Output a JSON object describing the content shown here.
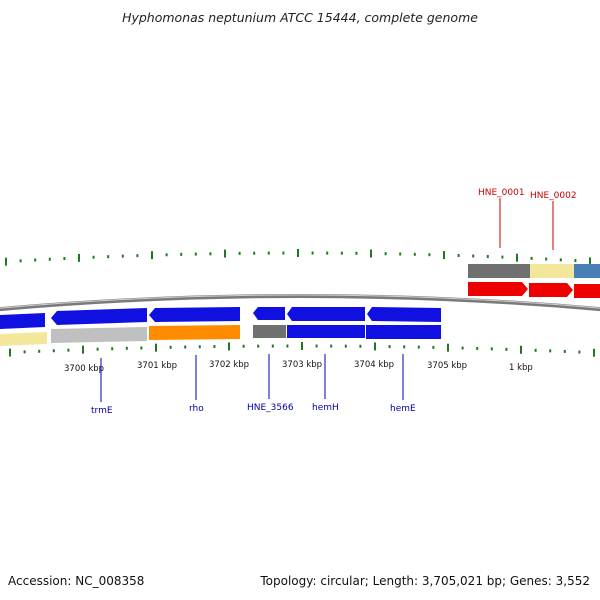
{
  "title": "Hyphomonas neptunium ATCC 15444, complete genome",
  "footer": {
    "accession": "Accession: NC_008358",
    "summary": "Topology: circular; Length: 3,705,021 bp; Genes: 3,552"
  },
  "colors": {
    "tick": "#1f7a1f",
    "backbone": "#808080",
    "forward_label": "#cc0000",
    "reverse_label": "#0000aa",
    "cds_blue": "#1010e0",
    "cds_red": "#ee0000",
    "rna_yellow": "#f3e79b",
    "gray_feature": "#707070",
    "light_gray_feature": "#c0c0c0",
    "orange_feature": "#ff8c00",
    "steelblue_feature": "#4a7fb5"
  },
  "scale_labels": [
    "3700 kbp",
    "3701 kbp",
    "3702 kbp",
    "3703 kbp",
    "3704 kbp",
    "3705 kbp",
    "1 kbp"
  ],
  "forward_gene_labels": [
    "HNE_0001",
    "HNE_0002"
  ],
  "reverse_gene_labels": [
    "trmE",
    "rho",
    "HNE_3566",
    "hemH",
    "hemE"
  ]
}
